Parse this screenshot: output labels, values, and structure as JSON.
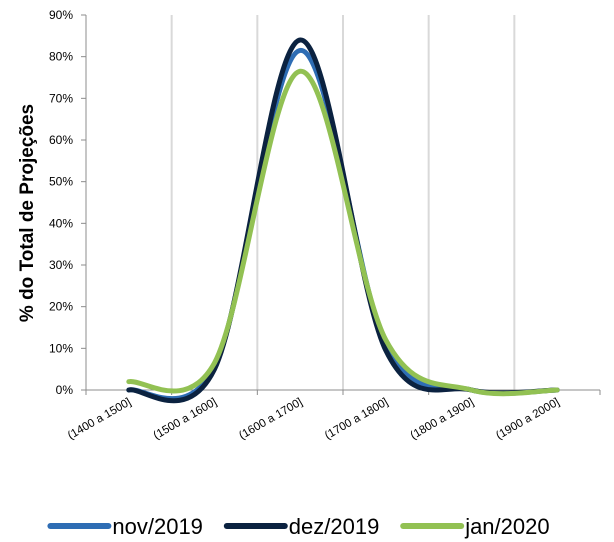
{
  "chart_data": {
    "type": "line",
    "smooth": true,
    "categories": [
      "(1400 a 1500]",
      "(1500 a 1600]",
      "(1600 a 1700]",
      "(1700 a 1800]",
      "(1800 a 1900]",
      "(1900 a 2000]"
    ],
    "ylabel": "% do Total de Projeções",
    "xlabel": "",
    "ylim": [
      0,
      90
    ],
    "yticks": [
      "0%",
      "10%",
      "20%",
      "30%",
      "40%",
      "50%",
      "60%",
      "70%",
      "80%",
      "90%"
    ],
    "ytick_values": [
      0,
      10,
      20,
      30,
      40,
      50,
      60,
      70,
      80,
      90
    ],
    "grid": "vertical",
    "legend_position": "bottom",
    "series": [
      {
        "name": "nov/2019",
        "color": "#2E6DB4",
        "values": [
          0,
          5.5,
          81.5,
          11,
          0,
          0
        ]
      },
      {
        "name": "dez/2019",
        "color": "#0B2240",
        "values": [
          0,
          5,
          84,
          9.5,
          0,
          0
        ]
      },
      {
        "name": "jan/2020",
        "color": "#92C153",
        "values": [
          2,
          6.5,
          76.5,
          12,
          0,
          0
        ]
      }
    ]
  }
}
